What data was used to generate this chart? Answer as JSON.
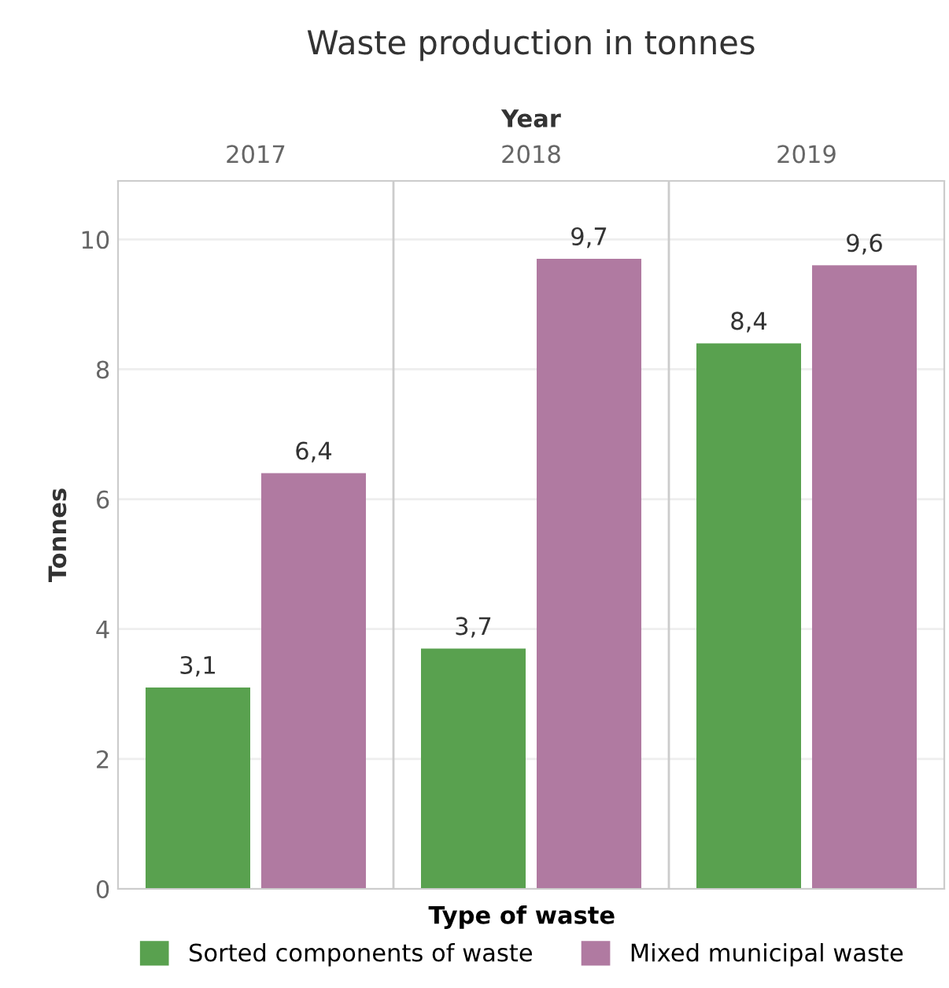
{
  "chart_data": {
    "type": "bar",
    "title": "Waste production in tonnes",
    "xlabel": "Year",
    "ylabel": "Tonnes",
    "legend_title": "Type of waste",
    "categories": [
      "2017",
      "2018",
      "2019"
    ],
    "series": [
      {
        "name": "Sorted components of waste",
        "color": "#59a14f",
        "values": [
          3.1,
          3.7,
          8.4
        ],
        "value_labels": [
          "3,1",
          "3,7",
          "8,4"
        ]
      },
      {
        "name": "Mixed municipal waste",
        "color": "#b07aa1",
        "values": [
          6.4,
          9.7,
          9.6
        ],
        "value_labels": [
          "6,4",
          "9,7",
          "9,6"
        ]
      }
    ],
    "ylim": [
      0,
      10.9
    ],
    "yticks": [
      0,
      2,
      4,
      6,
      8,
      10
    ],
    "grid": "y",
    "legend": "bottom"
  }
}
